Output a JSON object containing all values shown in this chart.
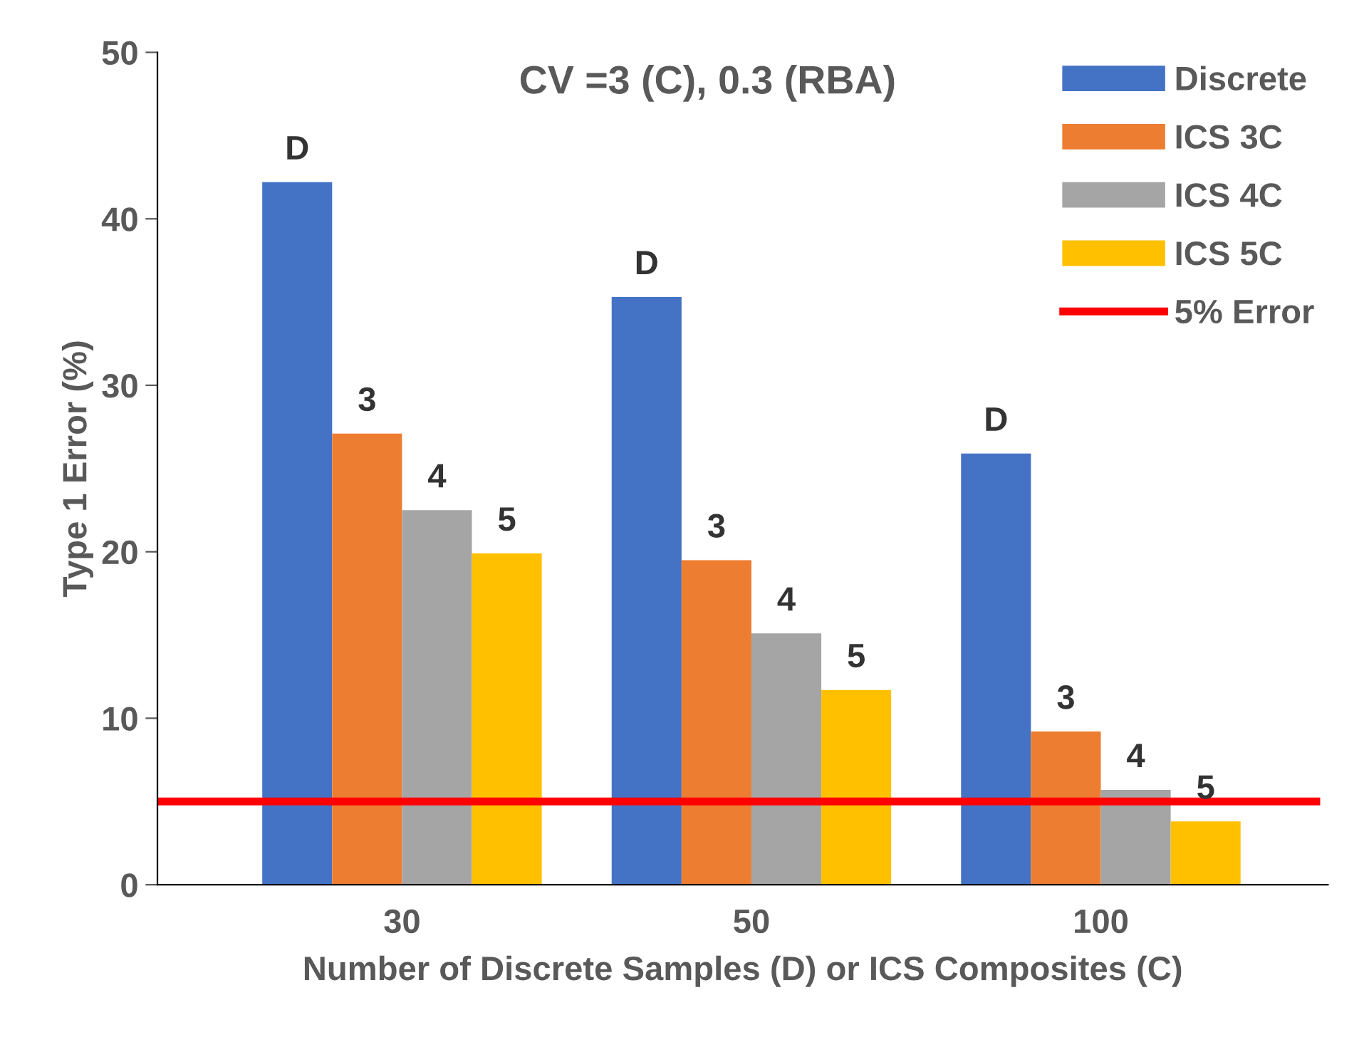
{
  "chart_data": {
    "type": "bar",
    "title": "CV =3 (C), 0.3 (RBA)",
    "xlabel": "Number of Discrete Samples (D) or ICS Composites (C)",
    "ylabel": "Type 1 Error (%)",
    "categories": [
      "30",
      "50",
      "100"
    ],
    "series": [
      {
        "name": "Discrete",
        "color": "#4472c4",
        "values": [
          42.2,
          35.3,
          25.9
        ]
      },
      {
        "name": "ICS 3C",
        "color": "#ed7d31",
        "values": [
          27.1,
          19.5,
          9.2
        ]
      },
      {
        "name": "ICS 4C",
        "color": "#a5a5a5",
        "values": [
          22.5,
          15.1,
          5.7
        ]
      },
      {
        "name": "ICS 5C",
        "color": "#ffc000",
        "values": [
          19.9,
          11.7,
          3.8
        ]
      }
    ],
    "annotations": [
      "D",
      "D",
      "D",
      "3",
      "3",
      "3",
      "4",
      "4",
      "4",
      "5",
      "5",
      "5"
    ],
    "ref_lines": [
      {
        "axis": "y",
        "value": 5,
        "label": "5% Error",
        "color": "#ff0000"
      }
    ],
    "ylim": [
      0,
      50
    ],
    "yticks": [
      0,
      10,
      20,
      30,
      40,
      50
    ],
    "grid": false,
    "legend": "top right"
  }
}
